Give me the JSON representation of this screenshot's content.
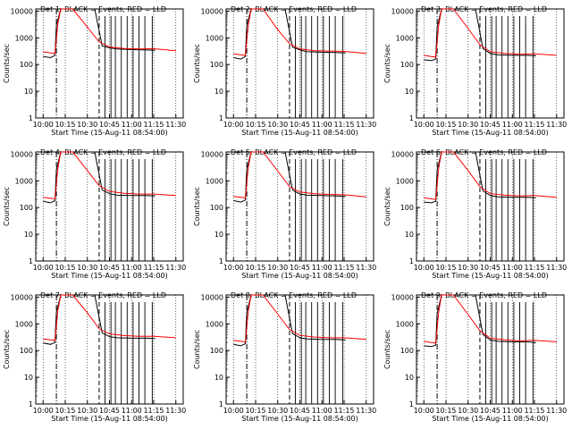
{
  "chart_data": [
    {
      "type": "line",
      "title": "Det 1: BLACK = Events, RED = LLD",
      "xlabel": "Start Time (15-Aug-11 08:54:00)",
      "ylabel": "Counts/sec",
      "x_tick_labels": [
        "10:00",
        "10:15",
        "10:30",
        "10:45",
        "11:00",
        "11:15",
        "11:30"
      ],
      "y_tick_labels": [
        "1",
        "10",
        "100",
        "1000",
        "10000"
      ],
      "ylim": [
        1,
        12000
      ],
      "y_scale": "log",
      "grid": "dotted",
      "series": [
        {
          "color": "#000000",
          "x": [
            "10:00",
            "10:05",
            "10:08",
            "10:09",
            "10:12",
            "10:20",
            "10:35",
            "10:40",
            "10:45",
            "10:50",
            "11:00",
            "11:10",
            "11:16"
          ],
          "values": [
            200,
            180,
            220,
            3000,
            12000,
            12000,
            12000,
            500,
            420,
            380,
            360,
            350,
            340
          ]
        },
        {
          "color": "#ff0000",
          "x": [
            "10:00",
            "10:05",
            "10:08",
            "10:10",
            "10:12",
            "10:20",
            "10:30",
            "10:38",
            "10:45",
            "10:55",
            "11:05",
            "11:15",
            "11:30"
          ],
          "values": [
            300,
            270,
            260,
            3500,
            12000,
            12000,
            2500,
            700,
            450,
            400,
            380,
            390,
            330
          ]
        }
      ]
    },
    {
      "type": "line",
      "title": "Det 2: BLACK = Events, RED = LLD",
      "xlabel": "Start Time (15-Aug-11 08:54:00)",
      "ylabel": "Counts/sec",
      "x_tick_labels": [
        "10:00",
        "10:15",
        "10:30",
        "10:45",
        "11:00",
        "11:15",
        "11:30"
      ],
      "y_tick_labels": [
        "1",
        "10",
        "100",
        "1000",
        "10000"
      ],
      "ylim": [
        1,
        12000
      ],
      "y_scale": "log",
      "grid": "dotted",
      "series": [
        {
          "color": "#000000",
          "x": [
            "10:00",
            "10:05",
            "10:08",
            "10:09",
            "10:12",
            "10:20",
            "10:35",
            "10:40",
            "10:45",
            "10:50",
            "11:00",
            "11:10",
            "11:16"
          ],
          "values": [
            180,
            160,
            200,
            2800,
            12000,
            12000,
            12000,
            450,
            350,
            300,
            290,
            280,
            270
          ]
        },
        {
          "color": "#ff0000",
          "x": [
            "10:00",
            "10:05",
            "10:08",
            "10:10",
            "10:12",
            "10:20",
            "10:30",
            "10:38",
            "10:45",
            "10:55",
            "11:05",
            "11:15",
            "11:30"
          ],
          "values": [
            250,
            230,
            220,
            3000,
            12000,
            12000,
            2000,
            600,
            380,
            330,
            320,
            310,
            260
          ]
        }
      ]
    },
    {
      "type": "line",
      "title": "Det 3: BLACK = Events, RED = LLD",
      "xlabel": "Start Time (15-Aug-11 08:54:00)",
      "ylabel": "Counts/sec",
      "x_tick_labels": [
        "10:00",
        "10:15",
        "10:30",
        "10:45",
        "11:00",
        "11:15",
        "11:30"
      ],
      "y_tick_labels": [
        "1",
        "10",
        "100",
        "1000",
        "10000"
      ],
      "ylim": [
        1,
        12000
      ],
      "y_scale": "log",
      "grid": "dotted",
      "series": [
        {
          "color": "#000000",
          "x": [
            "10:00",
            "10:05",
            "10:08",
            "10:09",
            "10:12",
            "10:20",
            "10:35",
            "10:40",
            "10:45",
            "10:50",
            "11:00",
            "11:10",
            "11:16"
          ],
          "values": [
            150,
            140,
            160,
            2500,
            12000,
            12000,
            12000,
            400,
            260,
            230,
            220,
            220,
            210
          ]
        },
        {
          "color": "#ff0000",
          "x": [
            "10:00",
            "10:05",
            "10:08",
            "10:10",
            "10:12",
            "10:20",
            "10:30",
            "10:38",
            "10:45",
            "10:55",
            "11:05",
            "11:15",
            "11:30"
          ],
          "values": [
            220,
            200,
            190,
            2800,
            12000,
            12000,
            2200,
            550,
            300,
            260,
            240,
            250,
            220
          ]
        }
      ]
    },
    {
      "type": "line",
      "title": "Det 4: BLACK = Events, RED = LLD",
      "xlabel": "Start Time (15-Aug-11 08:54:00)",
      "ylabel": "Counts/sec",
      "x_tick_labels": [
        "10:00",
        "10:15",
        "10:30",
        "10:45",
        "11:00",
        "11:15",
        "11:30"
      ],
      "y_tick_labels": [
        "1",
        "10",
        "100",
        "1000",
        "10000"
      ],
      "ylim": [
        1,
        12000
      ],
      "y_scale": "log",
      "grid": "dotted",
      "series": [
        {
          "color": "#000000",
          "x": [
            "10:00",
            "10:05",
            "10:08",
            "10:09",
            "10:12",
            "10:20",
            "10:35",
            "10:40",
            "10:45",
            "10:50",
            "11:00",
            "11:10",
            "11:16"
          ],
          "values": [
            170,
            150,
            180,
            2600,
            12000,
            12000,
            12000,
            450,
            330,
            290,
            280,
            280,
            270
          ]
        },
        {
          "color": "#ff0000",
          "x": [
            "10:00",
            "10:05",
            "10:08",
            "10:10",
            "10:12",
            "10:20",
            "10:30",
            "10:38",
            "10:45",
            "10:55",
            "11:05",
            "11:15",
            "11:30"
          ],
          "values": [
            240,
            220,
            210,
            3000,
            12000,
            12000,
            2400,
            650,
            400,
            340,
            320,
            320,
            280
          ]
        }
      ]
    },
    {
      "type": "line",
      "title": "Det 5: BLACK = Events, RED = LLD",
      "xlabel": "Start Time (15-Aug-11 08:54:00)",
      "ylabel": "Counts/sec",
      "x_tick_labels": [
        "10:00",
        "10:15",
        "10:30",
        "10:45",
        "11:00",
        "11:15",
        "11:30"
      ],
      "y_tick_labels": [
        "1",
        "10",
        "100",
        "1000",
        "10000"
      ],
      "ylim": [
        1,
        12000
      ],
      "y_scale": "log",
      "grid": "dotted",
      "series": [
        {
          "color": "#000000",
          "x": [
            "10:00",
            "10:05",
            "10:08",
            "10:09",
            "10:12",
            "10:20",
            "10:35",
            "10:40",
            "10:45",
            "10:50",
            "11:00",
            "11:10",
            "11:16"
          ],
          "values": [
            180,
            160,
            190,
            2700,
            12000,
            12000,
            12000,
            450,
            320,
            290,
            280,
            270,
            260
          ]
        },
        {
          "color": "#ff0000",
          "x": [
            "10:00",
            "10:05",
            "10:08",
            "10:10",
            "10:12",
            "10:20",
            "10:30",
            "10:38",
            "10:45",
            "10:55",
            "11:05",
            "11:15",
            "11:30"
          ],
          "values": [
            260,
            240,
            230,
            3200,
            12000,
            12000,
            2300,
            600,
            380,
            330,
            310,
            300,
            250
          ]
        }
      ]
    },
    {
      "type": "line",
      "title": "Det 6: BLACK = Events, RED = LLD",
      "xlabel": "Start Time (15-Aug-11 08:54:00)",
      "ylabel": "Counts/sec",
      "x_tick_labels": [
        "10:00",
        "10:15",
        "10:30",
        "10:45",
        "11:00",
        "11:15",
        "11:30"
      ],
      "y_tick_labels": [
        "1",
        "10",
        "100",
        "1000",
        "10000"
      ],
      "ylim": [
        1,
        12000
      ],
      "y_scale": "log",
      "grid": "dotted",
      "series": [
        {
          "color": "#000000",
          "x": [
            "10:00",
            "10:05",
            "10:08",
            "10:09",
            "10:12",
            "10:20",
            "10:35",
            "10:40",
            "10:45",
            "10:50",
            "11:00",
            "11:10",
            "11:16"
          ],
          "values": [
            160,
            150,
            170,
            2500,
            12000,
            12000,
            12000,
            420,
            280,
            250,
            240,
            240,
            230
          ]
        },
        {
          "color": "#ff0000",
          "x": [
            "10:00",
            "10:05",
            "10:08",
            "10:10",
            "10:12",
            "10:20",
            "10:30",
            "10:38",
            "10:45",
            "10:55",
            "11:05",
            "11:15",
            "11:30"
          ],
          "values": [
            230,
            210,
            200,
            2900,
            12000,
            12000,
            2400,
            600,
            330,
            290,
            270,
            280,
            240
          ]
        }
      ]
    },
    {
      "type": "line",
      "title": "Det 7: BLACK = Events, RED = LLD",
      "xlabel": "Start Time (15-Aug-11 08:54:00)",
      "ylabel": "Counts/sec",
      "x_tick_labels": [
        "10:00",
        "10:15",
        "10:30",
        "10:45",
        "11:00",
        "11:15",
        "11:30"
      ],
      "y_tick_labels": [
        "1",
        "10",
        "100",
        "1000",
        "10000"
      ],
      "ylim": [
        1,
        12000
      ],
      "y_scale": "log",
      "grid": "dotted",
      "series": [
        {
          "color": "#000000",
          "x": [
            "10:00",
            "10:05",
            "10:08",
            "10:09",
            "10:12",
            "10:20",
            "10:35",
            "10:40",
            "10:45",
            "10:50",
            "11:00",
            "11:10",
            "11:16"
          ],
          "values": [
            190,
            170,
            200,
            2800,
            12000,
            12000,
            12000,
            460,
            330,
            300,
            290,
            290,
            280
          ]
        },
        {
          "color": "#ff0000",
          "x": [
            "10:00",
            "10:05",
            "10:08",
            "10:10",
            "10:12",
            "10:20",
            "10:30",
            "10:38",
            "10:45",
            "10:55",
            "11:05",
            "11:15",
            "11:30"
          ],
          "values": [
            270,
            250,
            240,
            3300,
            12000,
            12000,
            2600,
            650,
            420,
            360,
            340,
            340,
            300
          ]
        }
      ]
    },
    {
      "type": "line",
      "title": "Det 8: BLACK = Events, RED = LLD",
      "xlabel": "Start Time (15-Aug-11 08:54:00)",
      "ylabel": "Counts/sec",
      "x_tick_labels": [
        "10:00",
        "10:15",
        "10:30",
        "10:45",
        "11:00",
        "11:15",
        "11:30"
      ],
      "y_tick_labels": [
        "1",
        "10",
        "100",
        "1000",
        "10000"
      ],
      "ylim": [
        1,
        12000
      ],
      "y_scale": "log",
      "grid": "dotted",
      "series": [
        {
          "color": "#000000",
          "x": [
            "10:00",
            "10:05",
            "10:08",
            "10:09",
            "10:12",
            "10:20",
            "10:35",
            "10:40",
            "10:45",
            "10:50",
            "11:00",
            "11:10",
            "11:16"
          ],
          "values": [
            170,
            150,
            180,
            2600,
            12000,
            12000,
            12000,
            430,
            300,
            270,
            260,
            260,
            250
          ]
        },
        {
          "color": "#ff0000",
          "x": [
            "10:00",
            "10:05",
            "10:08",
            "10:10",
            "10:12",
            "10:20",
            "10:30",
            "10:38",
            "10:45",
            "10:55",
            "11:05",
            "11:15",
            "11:30"
          ],
          "values": [
            240,
            220,
            210,
            3000,
            12000,
            12000,
            2300,
            600,
            370,
            320,
            300,
            300,
            260
          ]
        }
      ]
    },
    {
      "type": "line",
      "title": "Det 9: BLACK = Events, RED = LLD",
      "xlabel": "Start Time (15-Aug-11 08:54:00)",
      "ylabel": "Counts/sec",
      "x_tick_labels": [
        "10:00",
        "10:15",
        "10:30",
        "10:45",
        "11:00",
        "11:15",
        "11:30"
      ],
      "y_tick_labels": [
        "1",
        "10",
        "100",
        "1000",
        "10000"
      ],
      "ylim": [
        1,
        12000
      ],
      "y_scale": "log",
      "grid": "dotted",
      "series": [
        {
          "color": "#000000",
          "x": [
            "10:00",
            "10:05",
            "10:08",
            "10:09",
            "10:12",
            "10:20",
            "10:35",
            "10:40",
            "10:45",
            "10:50",
            "11:00",
            "11:10",
            "11:16"
          ],
          "values": [
            150,
            140,
            160,
            2400,
            12000,
            12000,
            12000,
            400,
            250,
            220,
            210,
            210,
            200
          ]
        },
        {
          "color": "#ff0000",
          "x": [
            "10:00",
            "10:05",
            "10:08",
            "10:10",
            "10:12",
            "10:20",
            "10:30",
            "10:38",
            "10:45",
            "10:55",
            "11:05",
            "11:15",
            "11:30"
          ],
          "values": [
            220,
            200,
            190,
            2700,
            12000,
            12000,
            2200,
            550,
            290,
            250,
            230,
            240,
            210
          ]
        }
      ]
    }
  ]
}
